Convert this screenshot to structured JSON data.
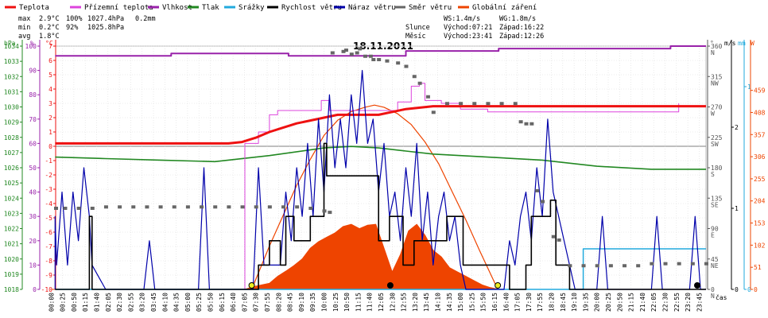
{
  "chart_data": {
    "type": "line",
    "title": "18.11.2011",
    "xlabel": "čas",
    "legend": {
      "placement": "top",
      "items": [
        {
          "name": "Teplota",
          "color": "#ee1111"
        },
        {
          "name": "Přízemní teplota",
          "color": "#dd44dd"
        },
        {
          "name": "Vlhkost",
          "color": "#9922aa"
        },
        {
          "name": "Tlak",
          "color": "#228822"
        },
        {
          "name": "Srážky",
          "color": "#22aadd"
        },
        {
          "name": "Rychlost větru",
          "color": "#000000"
        },
        {
          "name": "Náraz větru",
          "color": "#0000aa"
        },
        {
          "name": "Směr větru",
          "color": "#666666"
        },
        {
          "name": "Globální záření",
          "color": "#ee4400"
        }
      ]
    },
    "stats": {
      "labels": [
        "max",
        "min",
        "avg"
      ],
      "temp": [
        "2.9°C",
        "0.2°C",
        "1.8°C"
      ],
      "hum": [
        "100%",
        "92%"
      ],
      "press": [
        "1027.4hPa",
        "1025.8hPa"
      ],
      "rain": [
        "0.2mm"
      ]
    },
    "info": {
      "ws": "WS:1.4m/s",
      "wg": "WG:1.8m/s",
      "sun_label": "Slunce",
      "moon_label": "Měsíc",
      "sunrise": "Východ:07:21",
      "sunset": "Západ:16:22",
      "moonrise": "Východ:23:41",
      "moonset": "Západ:12:26"
    },
    "axes": {
      "press": {
        "label": "hPa",
        "min": 1018,
        "max": 1034,
        "ticks": [
          "1018",
          "1019",
          "1020",
          "1021",
          "1022",
          "1023",
          "1024",
          "1025",
          "1026",
          "1027",
          "1028",
          "1029",
          "1030",
          "1031",
          "1032",
          "1033",
          "1034"
        ]
      },
      "hum": {
        "label": "%",
        "min": 0,
        "max": 100,
        "ticks": [
          "0",
          "10",
          "20",
          "30",
          "40",
          "50",
          "60",
          "70",
          "80",
          "90",
          "100"
        ]
      },
      "temp": {
        "label": "°C",
        "min": -10,
        "max": 7,
        "ticks": [
          "-10",
          "-9",
          "-8",
          "-7",
          "-6",
          "-5",
          "-4",
          "-3",
          "-2",
          "-1",
          "0",
          "1",
          "2",
          "3",
          "4",
          "5",
          "6",
          "7"
        ]
      },
      "dir": {
        "label": "°",
        "min": 0,
        "max": 360,
        "ticks": [
          "0",
          "45",
          "90",
          "135",
          "180",
          "225",
          "270",
          "315",
          "360"
        ],
        "compass": [
          "N",
          "NE",
          "E",
          "SE",
          "S",
          "SW",
          "W",
          "NW",
          "N"
        ]
      },
      "wind": {
        "label": "m/s",
        "min": 0,
        "max": 3,
        "ticks": [
          "0",
          "1",
          "2"
        ]
      },
      "rain": {
        "label": "mm",
        "min": 0,
        "max": 1.2,
        "ticks": [
          "0",
          "1"
        ]
      },
      "rad": {
        "label": "W",
        "min": 0,
        "max": 561,
        "ticks": [
          "0",
          "51",
          "102",
          "153",
          "204",
          "255",
          "306",
          "357",
          "408",
          "459"
        ]
      }
    },
    "x_ticks": [
      "00:00",
      "00:25",
      "00:50",
      "01:15",
      "01:40",
      "02:05",
      "02:30",
      "02:55",
      "03:20",
      "03:45",
      "04:10",
      "04:35",
      "05:00",
      "05:25",
      "05:50",
      "06:15",
      "06:40",
      "07:05",
      "07:30",
      "07:55",
      "08:20",
      "08:45",
      "09:10",
      "09:35",
      "10:00",
      "10:25",
      "10:50",
      "11:15",
      "11:40",
      "12:05",
      "12:30",
      "12:55",
      "13:20",
      "13:45",
      "14:10",
      "14:35",
      "15:00",
      "15:25",
      "15:50",
      "16:15",
      "16:40",
      "17:05",
      "17:30",
      "17:55",
      "18:20",
      "18:45",
      "19:10",
      "19:35",
      "20:00",
      "20:25",
      "20:50",
      "21:15",
      "21:40",
      "22:05",
      "22:30",
      "22:55",
      "23:20",
      "23:45"
    ],
    "series": {
      "temp": {
        "unit": "°C",
        "hours": [
          0,
          5,
          6.5,
          7,
          7.5,
          8,
          8.5,
          9,
          9.5,
          10,
          10.5,
          11,
          12,
          12.5,
          13,
          14,
          15,
          16,
          17,
          18,
          19,
          20,
          21,
          22,
          23,
          24
        ],
        "values": [
          0.2,
          0.2,
          0.2,
          0.3,
          0.6,
          1.0,
          1.3,
          1.6,
          1.8,
          2.0,
          2.2,
          2.2,
          2.2,
          2.4,
          2.6,
          2.8,
          2.8,
          2.8,
          2.8,
          2.8,
          2.8,
          2.8,
          2.8,
          2.8,
          2.8,
          2.8
        ]
      },
      "ground_temp": {
        "unit": "°C",
        "hours": [
          0,
          6.9,
          7.1,
          7.6,
          8.0,
          8.3,
          9.6,
          9.9,
          10.2,
          12.0,
          12.7,
          13.2,
          13.5,
          13.7,
          14.3,
          15.0,
          16.0,
          17.0,
          18.0,
          19.0,
          21.0,
          22.5,
          23.0
        ],
        "values": [
          -10,
          -10,
          0.2,
          1.0,
          2.2,
          2.5,
          2.5,
          3.2,
          2.5,
          2.5,
          3.1,
          4.2,
          4.4,
          3.2,
          3.0,
          2.6,
          2.4,
          2.4,
          2.4,
          2.4,
          2.4,
          2.4,
          3.0
        ]
      },
      "humidity": {
        "unit": "%",
        "hours": [
          0,
          4.2,
          4.4,
          8.5,
          8.7,
          12.7,
          13.0,
          16.0,
          16.4,
          22.5,
          22.7,
          24
        ],
        "values": [
          96,
          96,
          97,
          97,
          96,
          96,
          98,
          98,
          99,
          99,
          100,
          100
        ]
      },
      "pressure": {
        "unit": "hPa",
        "hours": [
          0,
          2,
          4,
          6,
          8,
          10,
          11,
          12,
          13,
          14,
          16,
          18,
          20,
          22,
          24
        ],
        "values": [
          1026.7,
          1026.6,
          1026.5,
          1026.4,
          1026.8,
          1027.3,
          1027.4,
          1027.3,
          1027.1,
          1026.9,
          1026.7,
          1026.5,
          1026.1,
          1025.9,
          1025.9
        ]
      },
      "rain": {
        "unit": "mm",
        "hours": [
          0,
          19.4,
          19.5,
          24
        ],
        "values": [
          0,
          0,
          0.2,
          0.2
        ]
      },
      "wind_speed": {
        "unit": "m/s",
        "hours": [
          0,
          1.4,
          1.5,
          7.5,
          7.6,
          8.0,
          8.4,
          8.6,
          8.9,
          9.5,
          10.0,
          10.1,
          11.9,
          12.0,
          12.4,
          12.9,
          13.3,
          14.5,
          15.1,
          16.8,
          17.4,
          17.6,
          18.3,
          18.5,
          19.0,
          24
        ],
        "values": [
          0,
          0.9,
          0,
          0,
          0.3,
          0.6,
          0.3,
          0.9,
          0.6,
          0.9,
          1.8,
          1.4,
          1.4,
          0.6,
          0.9,
          0.3,
          0.6,
          0.9,
          0.3,
          0,
          0.3,
          0.9,
          1.1,
          0.3,
          0,
          0
        ]
      },
      "wind_gust": {
        "unit": "m/s",
        "hours": [
          0,
          0.1,
          0.2,
          0.4,
          0.6,
          0.8,
          1.0,
          1.2,
          1.4,
          1.5,
          2.0,
          3.4,
          3.6,
          3.8,
          5.4,
          5.6,
          5.8,
          7.4,
          7.6,
          7.8,
          8.4,
          8.6,
          8.8,
          9.0,
          9.2,
          9.4,
          9.6,
          9.8,
          10.0,
          10.2,
          10.4,
          10.6,
          10.8,
          11.0,
          11.2,
          11.4,
          11.6,
          11.8,
          12.0,
          12.2,
          12.4,
          12.6,
          12.8,
          13.0,
          13.2,
          13.4,
          13.6,
          13.8,
          14.0,
          14.2,
          14.4,
          14.6,
          14.8,
          15.0,
          15.2,
          16.6,
          16.8,
          17.0,
          17.2,
          17.4,
          17.6,
          17.8,
          18.0,
          18.2,
          18.4,
          18.6,
          18.8,
          19.0,
          19.2,
          20.0,
          20.2,
          20.4,
          22.0,
          22.2,
          22.4,
          23.4,
          23.6,
          23.8,
          24
        ],
        "values": [
          0,
          0.9,
          0.3,
          1.2,
          0.3,
          1.2,
          0.6,
          1.5,
          0.9,
          0.3,
          0,
          0,
          0.6,
          0,
          0,
          1.5,
          0,
          0,
          1.5,
          0.3,
          0.3,
          1.2,
          0.6,
          1.5,
          0.9,
          1.8,
          0.9,
          2.1,
          1.2,
          2.4,
          1.5,
          2.1,
          1.5,
          2.4,
          1.8,
          2.7,
          1.8,
          2.1,
          1.2,
          1.8,
          0.9,
          1.2,
          0.6,
          1.5,
          0.9,
          1.8,
          0.6,
          1.2,
          0.3,
          0.9,
          1.2,
          0.6,
          0.9,
          0.3,
          0,
          0,
          0.6,
          0.3,
          0.9,
          1.2,
          0.6,
          1.5,
          0.9,
          2.1,
          1.2,
          0.9,
          0.6,
          0.3,
          0,
          0,
          0.9,
          0,
          0,
          0.9,
          0,
          0,
          0.9,
          0,
          0
        ]
      },
      "wind_dir": {
        "unit": "°",
        "hours": [
          0.0,
          0.5,
          1.0,
          1.5,
          2.0,
          2.5,
          3.0,
          3.5,
          4.0,
          4.5,
          5.0,
          5.5,
          6.0,
          6.5,
          7.0,
          7.5,
          8.0,
          8.5,
          9.0,
          9.5,
          10.0,
          10.2,
          10.3,
          10.7,
          10.8,
          11.0,
          11.2,
          11.3,
          11.5,
          11.7,
          11.8,
          12.0,
          12.3,
          12.7,
          13.0,
          13.3,
          13.5,
          13.8,
          14.0,
          14.5,
          15.0,
          15.5,
          16.0,
          16.5,
          17.0,
          17.2,
          17.4,
          17.6,
          17.8,
          18.0,
          18.4,
          18.6,
          19.0,
          19.5,
          20.0,
          20.5,
          21.0,
          21.5,
          22.0,
          22.5,
          23.0,
          23.5,
          24.0
        ],
        "values": [
          120,
          120,
          120,
          120,
          122,
          122,
          122,
          122,
          122,
          122,
          122,
          122,
          122,
          122,
          122,
          122,
          122,
          122,
          122,
          120,
          116,
          114,
          350,
          352,
          354,
          348,
          350,
          356,
          345,
          345,
          340,
          340,
          338,
          335,
          330,
          315,
          305,
          285,
          262,
          275,
          275,
          275,
          275,
          275,
          275,
          248,
          245,
          245,
          146,
          130,
          78,
          73,
          35,
          35,
          35,
          35,
          35,
          35,
          38,
          38,
          38,
          38,
          38
        ]
      },
      "radiation": {
        "unit": "W",
        "hours": [
          0,
          7.1,
          7.4,
          7.7,
          8.0,
          8.3,
          8.6,
          8.9,
          9.2,
          9.5,
          9.8,
          10.1,
          10.4,
          10.7,
          11.0,
          11.3,
          11.6,
          11.9,
          12.2,
          12.5,
          12.8,
          13.1,
          13.4,
          13.7,
          14.0,
          14.3,
          14.6,
          14.9,
          15.2,
          15.5,
          15.8,
          16.1,
          16.4,
          24
        ],
        "values": [
          0,
          0,
          6,
          10,
          14,
          30,
          42,
          55,
          70,
          95,
          110,
          120,
          130,
          145,
          150,
          140,
          148,
          150,
          95,
          40,
          80,
          135,
          150,
          125,
          90,
          75,
          50,
          40,
          30,
          20,
          10,
          4,
          0,
          0
        ]
      },
      "solar_clear": {
        "unit": "W",
        "hours": [
          7.35,
          8.0,
          8.5,
          9.0,
          9.5,
          10.0,
          10.5,
          11.0,
          11.5,
          11.85,
          12.2,
          12.7,
          13.2,
          13.7,
          14.2,
          14.7,
          15.2,
          15.7,
          16.37
        ],
        "values": [
          0,
          100,
          170,
          240,
          300,
          355,
          390,
          410,
          420,
          425,
          420,
          405,
          380,
          340,
          290,
          225,
          160,
          90,
          0
        ]
      }
    }
  }
}
